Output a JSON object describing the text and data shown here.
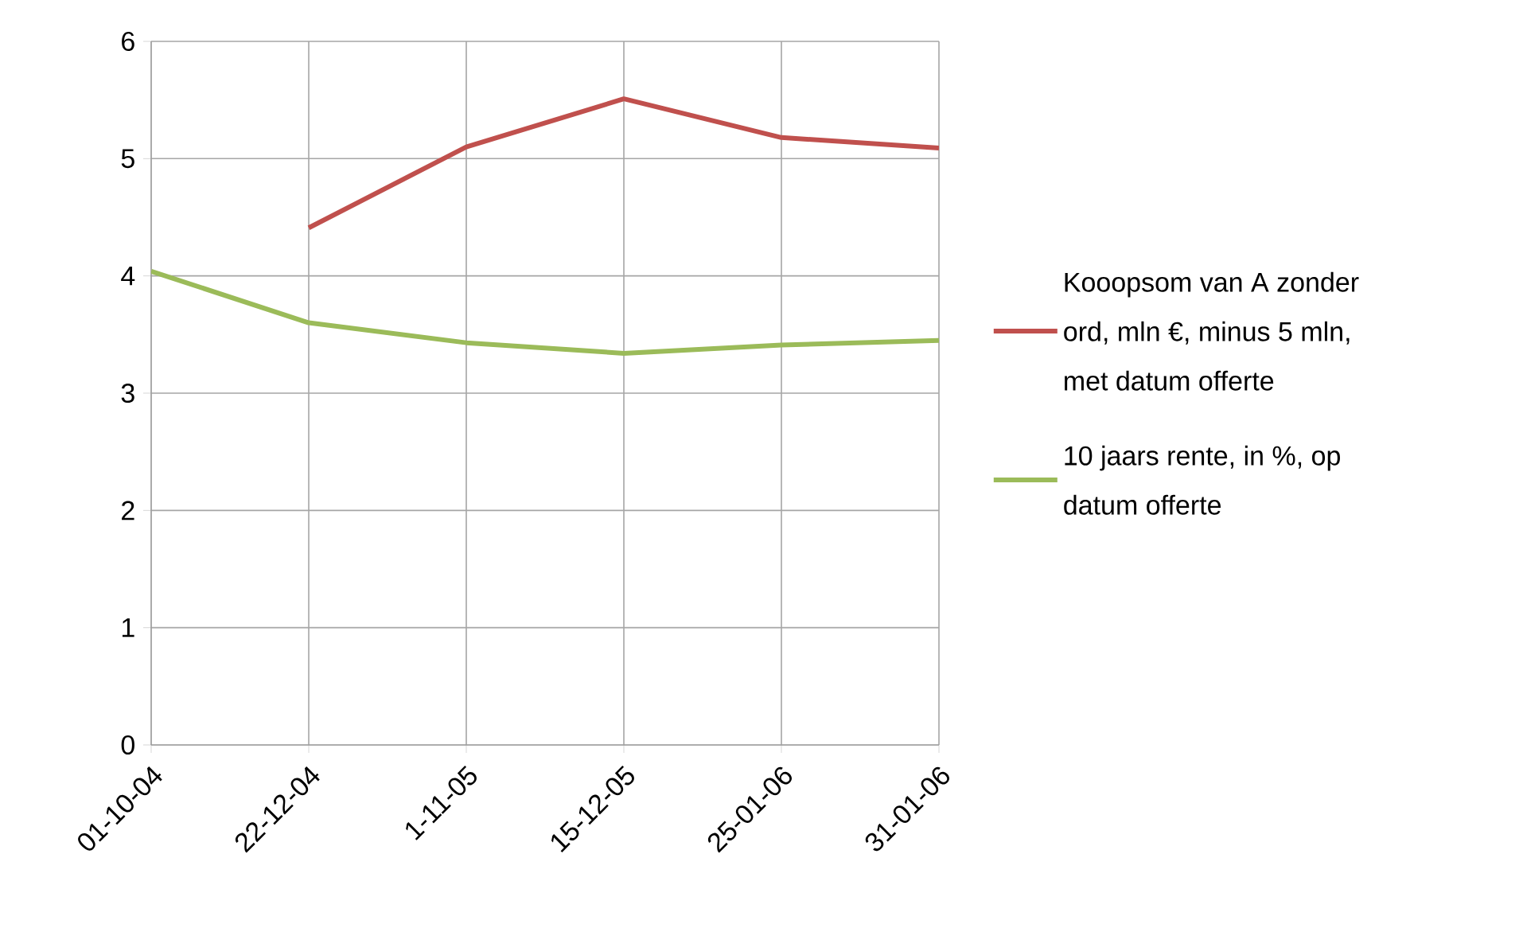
{
  "chart_data": {
    "type": "line",
    "categories": [
      "01-10-04",
      "22-12-04",
      "1-11-05",
      "15-12-05",
      "25-01-06",
      "31-01-06"
    ],
    "series": [
      {
        "name": "Kooopsom van A zonder ord, mln €, minus 5 mln, met datum offerte",
        "color": "#c0504d",
        "values": [
          null,
          4.41,
          5.1,
          5.51,
          5.18,
          5.09
        ]
      },
      {
        "name": "10 jaars rente, in %, op datum offerte",
        "color": "#9bbb59",
        "values": [
          4.04,
          3.6,
          3.43,
          3.34,
          3.41,
          3.45
        ]
      }
    ],
    "ylim": [
      0,
      6
    ],
    "yticks": [
      0,
      1,
      2,
      3,
      4,
      5,
      6
    ],
    "grid": true,
    "legend": "right",
    "marker": "none",
    "line_style": "solid"
  }
}
